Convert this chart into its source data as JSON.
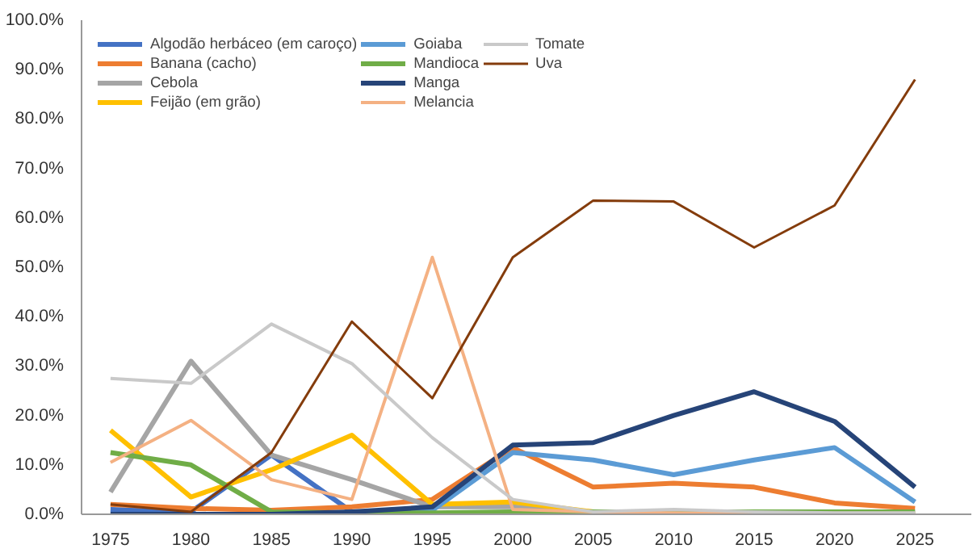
{
  "chart_data": {
    "type": "line",
    "x": [
      1975,
      1980,
      1985,
      1990,
      1995,
      2000,
      2005,
      2010,
      2015,
      2020,
      2025
    ],
    "xlim": [
      1973.2,
      2028.5
    ],
    "xticks": [
      1975,
      1980,
      1985,
      1990,
      1995,
      2000,
      2005,
      2010,
      2015,
      2020,
      2025
    ],
    "ylim": [
      0,
      100
    ],
    "yticks": [
      {
        "value": 0,
        "label": "0.0%"
      },
      {
        "value": 10,
        "label": "10.0%"
      },
      {
        "value": 20,
        "label": "20.0%"
      },
      {
        "value": 30,
        "label": "30.0%"
      },
      {
        "value": 40,
        "label": "40.0%"
      },
      {
        "value": 50,
        "label": "50.0%"
      },
      {
        "value": 60,
        "label": "60.0%"
      },
      {
        "value": 70,
        "label": "70.0%"
      },
      {
        "value": 80,
        "label": "80.0%"
      },
      {
        "value": 90,
        "label": "90.0%"
      },
      {
        "value": 100,
        "label": "100.0%"
      }
    ],
    "grid": false,
    "legend": "top left",
    "marker": "none",
    "line_style": "solid",
    "series": [
      {
        "name": "Algodão herbáceo (em caroço)",
        "color": "#4472c4",
        "values": [
          1,
          0.5,
          12,
          0.5,
          0.5,
          null,
          null,
          null,
          null,
          null,
          null
        ]
      },
      {
        "name": "Banana (cacho)",
        "color": "#ed7d31",
        "values": [
          2,
          1.2,
          0.8,
          1.5,
          3,
          13.5,
          5.5,
          6.3,
          5.5,
          2.3,
          1.2
        ]
      },
      {
        "name": "Cebola",
        "color": "#a5a5a5",
        "values": [
          4.5,
          31,
          12,
          7,
          1.5,
          1.5,
          0.5,
          0.5,
          0.3,
          0.3,
          0.3
        ]
      },
      {
        "name": "Feijão (em grão)",
        "color": "#ffc000",
        "values": [
          17,
          3.5,
          9,
          16,
          2,
          2.5,
          0.5,
          null,
          null,
          null,
          null
        ]
      },
      {
        "name": "Goiaba",
        "color": "#5b9bd5",
        "values": [
          0,
          0,
          0,
          0,
          0.8,
          12.5,
          11,
          8,
          11,
          13.5,
          2.5
        ]
      },
      {
        "name": "Mandioca",
        "color": "#70ad47",
        "values": [
          12.5,
          10,
          0.5,
          0.3,
          0.3,
          0.5,
          0.5,
          0.5,
          0.5,
          0.5,
          0.5
        ]
      },
      {
        "name": "Manga",
        "color": "#264478",
        "values": [
          0,
          0,
          0,
          0.5,
          1.5,
          14,
          14.5,
          20,
          24.8,
          18.8,
          5.5
        ]
      },
      {
        "name": "Melancia",
        "color": "#f4b183",
        "values": [
          10.5,
          19,
          7,
          3,
          52,
          1,
          0.5,
          0.3,
          0.2,
          0.2,
          0.2
        ]
      },
      {
        "name": "Tomate",
        "color": "#c9c9c9",
        "values": [
          27.5,
          26.5,
          38.5,
          30.5,
          15.5,
          3,
          0.5,
          1,
          0.5,
          0.3,
          0.3
        ]
      },
      {
        "name": "Uva",
        "color": "#843c0c",
        "values": [
          2,
          0.5,
          12.5,
          39,
          23.5,
          52,
          63.5,
          63.3,
          54,
          62.5,
          88
        ]
      }
    ]
  }
}
